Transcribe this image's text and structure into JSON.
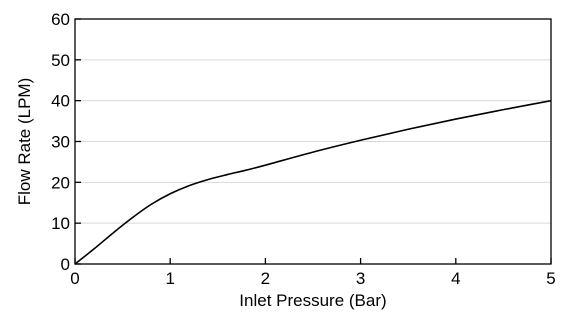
{
  "chart_data": {
    "type": "line",
    "xlabel": "Inlet Pressure (Bar)",
    "ylabel": "Flow Rate (LPM)",
    "xlim": [
      0,
      5
    ],
    "ylim": [
      0,
      60
    ],
    "xticks": [
      0,
      1,
      2,
      3,
      4,
      5
    ],
    "yticks": [
      0,
      10,
      20,
      30,
      40,
      50,
      60
    ],
    "grid": "horizontal",
    "legend": "none",
    "colors": {
      "line": "#000000",
      "grid": "#d9d9d9",
      "axis": "#000000"
    },
    "series": [
      {
        "x": [
          0,
          0.2,
          0.4,
          0.6,
          0.8,
          1.0,
          1.2,
          1.4,
          1.6,
          1.8,
          2.0,
          2.5,
          3.0,
          3.5,
          4.0,
          4.5,
          5.0
        ],
        "y": [
          0,
          3.7,
          7.6,
          11.3,
          14.6,
          17.2,
          19.2,
          20.7,
          21.9,
          23.0,
          24.2,
          27.4,
          30.3,
          33.0,
          35.5,
          37.8,
          40.0
        ]
      }
    ]
  }
}
